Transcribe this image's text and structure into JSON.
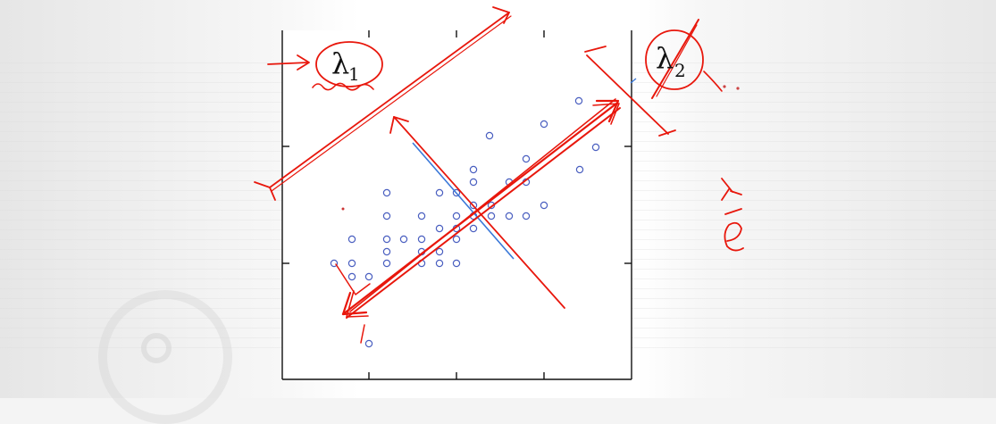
{
  "labels": {
    "lambda1": "λ",
    "lambda1_sub": "1",
    "lambda2": "λ",
    "lambda2_sub": "2"
  },
  "scatter_points": [
    [
      548,
      152
    ],
    [
      609,
      139
    ],
    [
      648,
      113
    ],
    [
      667,
      165
    ],
    [
      649,
      190
    ],
    [
      530,
      190
    ],
    [
      589,
      178
    ],
    [
      530,
      204
    ],
    [
      570,
      204
    ],
    [
      589,
      204
    ],
    [
      492,
      216
    ],
    [
      511,
      216
    ],
    [
      433,
      216
    ],
    [
      530,
      230
    ],
    [
      550,
      230
    ],
    [
      609,
      230
    ],
    [
      433,
      242
    ],
    [
      472,
      242
    ],
    [
      511,
      242
    ],
    [
      530,
      242
    ],
    [
      550,
      242
    ],
    [
      570,
      242
    ],
    [
      589,
      242
    ],
    [
      511,
      256
    ],
    [
      530,
      256
    ],
    [
      492,
      256
    ],
    [
      394,
      268
    ],
    [
      433,
      268
    ],
    [
      452,
      268
    ],
    [
      472,
      268
    ],
    [
      511,
      268
    ],
    [
      433,
      282
    ],
    [
      472,
      282
    ],
    [
      492,
      282
    ],
    [
      374,
      295
    ],
    [
      394,
      295
    ],
    [
      433,
      295
    ],
    [
      472,
      295
    ],
    [
      492,
      295
    ],
    [
      511,
      295
    ],
    [
      394,
      310
    ],
    [
      413,
      310
    ],
    [
      413,
      385
    ]
  ],
  "colors": {
    "ink_red": "#e8170c",
    "point_blue": "#4a5fc0",
    "blue_line": "#3a78d8",
    "axis": "#111111"
  }
}
